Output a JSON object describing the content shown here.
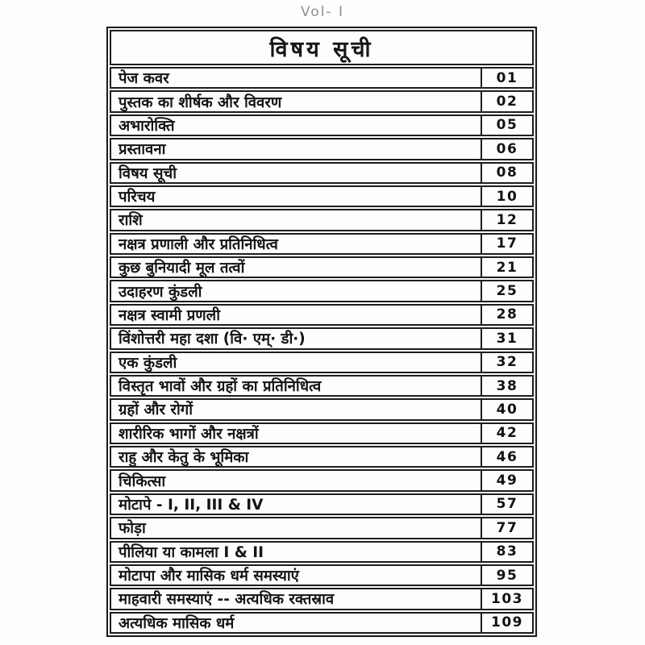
{
  "page": {
    "volume_label": "Vol- I",
    "title": "विषय सूची"
  },
  "toc": {
    "entries": [
      {
        "label": "पेज कवर",
        "page": "01"
      },
      {
        "label": "पुस्तक का शीर्षक और विवरण",
        "page": "02"
      },
      {
        "label": "अभारोक्ति",
        "page": "05"
      },
      {
        "label": "प्रस्तावना",
        "page": "06"
      },
      {
        "label": "विषय सूची",
        "page": "08"
      },
      {
        "label": "परिचय",
        "page": "10"
      },
      {
        "label": "राशि",
        "page": "12"
      },
      {
        "label": "नक्षत्र प्रणाली और प्रतिनिधित्व",
        "page": "17"
      },
      {
        "label": "कुछ बुनियादी मूल तत्वों",
        "page": "21"
      },
      {
        "label": "उदाहरण कुंडली",
        "page": "25"
      },
      {
        "label": "नक्षत्र स्वामी प्रणली",
        "page": "28"
      },
      {
        "label": "विंशोत्तरी महा दशा (वि· एम्· डी·)",
        "page": "31"
      },
      {
        "label": "एक कुंडली",
        "page": "32"
      },
      {
        "label": "विस्तृत भावों और ग्रहों का प्रतिनिधित्व",
        "page": "38"
      },
      {
        "label": "ग्रहों और रोगों",
        "page": "40"
      },
      {
        "label": "शारीरिक भागों और नक्षत्रों",
        "page": "42"
      },
      {
        "label": "राहु और केतु के भूमिका",
        "page": "46"
      },
      {
        "label": "चिकित्सा",
        "page": "49"
      },
      {
        "label": "मोटापे - I, II, III & IV",
        "page": "57"
      },
      {
        "label": "फोड़ा",
        "page": "77"
      },
      {
        "label": "पीलिया या कामला I & II",
        "page": "83"
      },
      {
        "label": "मोटापा और मासिक धर्म समस्याएं",
        "page": "95"
      },
      {
        "label": "माहवारी समस्याएं -- अत्यधिक रक्तस्राव",
        "page": "103"
      },
      {
        "label": "अत्यधिक मासिक धर्म",
        "page": "109"
      }
    ]
  }
}
